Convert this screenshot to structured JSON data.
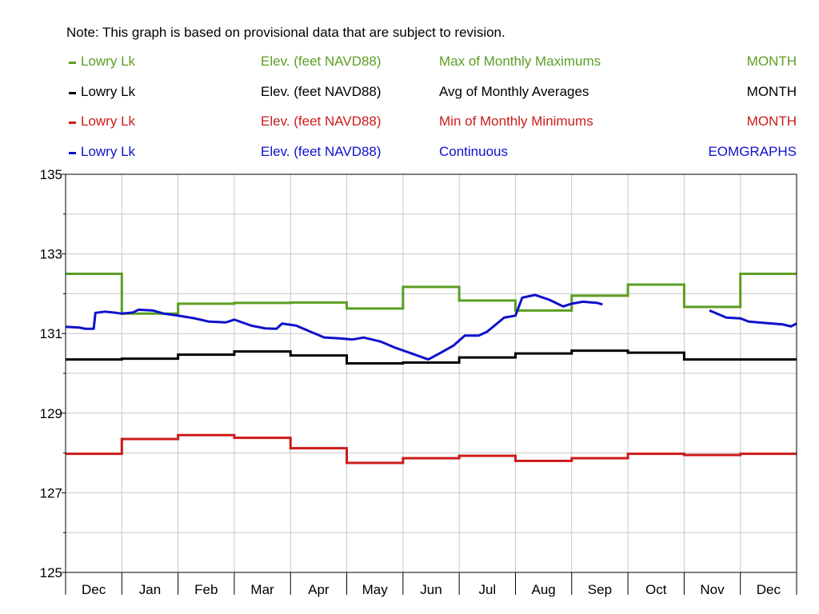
{
  "note": "Note: This graph is based on provisional data that are subject to revision.",
  "legend": [
    {
      "name": "Lowry Lk",
      "parameter": "Elev. (feet NAVD88)",
      "statistic": "Max of Monthly Maximums",
      "interval": "MONTH",
      "color": "#5b9e23"
    },
    {
      "name": "Lowry Lk",
      "parameter": "Elev. (feet NAVD88)",
      "statistic": "Avg of Monthly Averages",
      "interval": "MONTH",
      "color": "#000000"
    },
    {
      "name": "Lowry Lk",
      "parameter": "Elev. (feet NAVD88)",
      "statistic": "Min of Monthly Minimums",
      "interval": "MONTH",
      "color": "#cc1b1b"
    },
    {
      "name": "Lowry Lk",
      "parameter": "Elev. (feet NAVD88)",
      "statistic": "Continuous",
      "interval": "EOMGRAPHS",
      "color": "#1010cc"
    }
  ],
  "chart_data": {
    "type": "line",
    "title": "",
    "xlabel": "",
    "ylabel": "",
    "ylim": [
      125,
      135
    ],
    "y_ticks": [
      "125",
      "127",
      "129",
      "131",
      "133",
      "135"
    ],
    "categories": [
      "Dec",
      "Jan",
      "Feb",
      "Mar",
      "Apr",
      "May",
      "Jun",
      "Jul",
      "Aug",
      "Sep",
      "Oct",
      "Nov",
      "Dec"
    ],
    "grid": true,
    "series": [
      {
        "name": "Max of Monthly Maximums",
        "color": "#5b9e23",
        "step": true,
        "values": [
          132.5,
          131.5,
          131.75,
          131.77,
          131.78,
          131.63,
          132.17,
          131.83,
          131.58,
          131.95,
          132.23,
          131.67,
          132.5
        ]
      },
      {
        "name": "Avg of Monthly Averages",
        "color": "#000000",
        "step": true,
        "values": [
          130.35,
          130.37,
          130.47,
          130.55,
          130.45,
          130.25,
          130.27,
          130.4,
          130.5,
          130.57,
          130.52,
          130.35,
          130.35
        ]
      },
      {
        "name": "Min of Monthly Minimums",
        "color": "#cc1b1b",
        "step": true,
        "values": [
          127.98,
          128.35,
          128.45,
          128.38,
          128.12,
          127.75,
          127.87,
          127.93,
          127.8,
          127.87,
          127.98,
          127.95,
          127.98
        ]
      },
      {
        "name": "Continuous",
        "color": "#1010cc",
        "step": false,
        "segments": [
          [
            [
              0.0,
              131.17
            ],
            [
              0.25,
              131.15
            ],
            [
              0.35,
              131.12
            ],
            [
              0.5,
              131.12
            ],
            [
              0.53,
              131.52
            ],
            [
              0.7,
              131.55
            ],
            [
              0.9,
              131.52
            ],
            [
              1.0,
              131.5
            ],
            [
              1.2,
              131.53
            ],
            [
              1.3,
              131.6
            ],
            [
              1.55,
              131.58
            ],
            [
              1.75,
              131.5
            ],
            [
              2.0,
              131.45
            ],
            [
              2.3,
              131.38
            ],
            [
              2.55,
              131.3
            ],
            [
              2.85,
              131.28
            ],
            [
              3.0,
              131.35
            ],
            [
              3.3,
              131.2
            ],
            [
              3.55,
              131.13
            ],
            [
              3.75,
              131.12
            ],
            [
              3.85,
              131.25
            ],
            [
              4.1,
              131.2
            ],
            [
              4.35,
              131.05
            ],
            [
              4.6,
              130.9
            ],
            [
              4.85,
              130.88
            ],
            [
              5.1,
              130.85
            ],
            [
              5.3,
              130.9
            ],
            [
              5.6,
              130.8
            ],
            [
              5.85,
              130.65
            ],
            [
              6.15,
              130.5
            ],
            [
              6.45,
              130.35
            ],
            [
              6.65,
              130.5
            ],
            [
              6.9,
              130.7
            ],
            [
              7.1,
              130.95
            ],
            [
              7.35,
              130.95
            ],
            [
              7.5,
              131.05
            ],
            [
              7.8,
              131.4
            ],
            [
              8.0,
              131.45
            ],
            [
              8.12,
              131.9
            ],
            [
              8.35,
              131.97
            ],
            [
              8.6,
              131.85
            ],
            [
              8.85,
              131.68
            ],
            [
              9.0,
              131.75
            ],
            [
              9.2,
              131.8
            ],
            [
              9.45,
              131.77
            ],
            [
              9.55,
              131.73
            ]
          ],
          [
            [
              11.45,
              131.58
            ],
            [
              11.75,
              131.4
            ],
            [
              12.0,
              131.38
            ],
            [
              12.15,
              131.3
            ],
            [
              12.4,
              131.27
            ],
            [
              12.75,
              131.23
            ],
            [
              12.9,
              131.18
            ],
            [
              13.0,
              131.25
            ]
          ]
        ]
      }
    ]
  }
}
